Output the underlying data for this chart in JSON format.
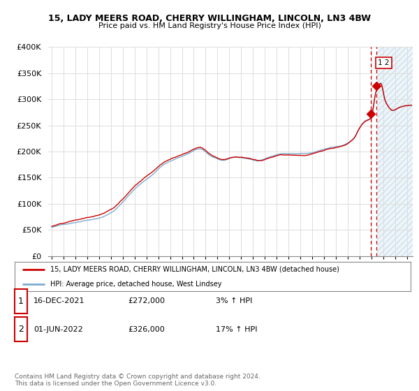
{
  "title": "15, LADY MEERS ROAD, CHERRY WILLINGHAM, LINCOLN, LN3 4BW",
  "subtitle": "Price paid vs. HM Land Registry's House Price Index (HPI)",
  "ylabel_ticks": [
    "£0",
    "£50K",
    "£100K",
    "£150K",
    "£200K",
    "£250K",
    "£300K",
    "£350K",
    "£400K"
  ],
  "ytick_values": [
    0,
    50000,
    100000,
    150000,
    200000,
    250000,
    300000,
    350000,
    400000
  ],
  "ylim": [
    0,
    400000
  ],
  "xlim_start": 1994.7,
  "xlim_end": 2025.5,
  "year_ticks": [
    1995,
    1996,
    1997,
    1998,
    1999,
    2000,
    2001,
    2002,
    2003,
    2004,
    2005,
    2006,
    2007,
    2008,
    2009,
    2010,
    2011,
    2012,
    2013,
    2014,
    2015,
    2016,
    2017,
    2018,
    2019,
    2020,
    2021,
    2022,
    2023,
    2024,
    2025
  ],
  "hpi_color": "#7aadcf",
  "price_color": "#cc0000",
  "hatch_color": "#c8dff0",
  "marker1_date": 2021.96,
  "marker1_price": 272000,
  "marker2_date": 2022.42,
  "marker2_price": 326000,
  "hatch_start": 2022.5,
  "legend_label1": "15, LADY MEERS ROAD, CHERRY WILLINGHAM, LINCOLN, LN3 4BW (detached house)",
  "legend_label2": "HPI: Average price, detached house, West Lindsey",
  "table_row1": [
    "1",
    "16-DEC-2021",
    "£272,000",
    "3% ↑ HPI"
  ],
  "table_row2": [
    "2",
    "01-JUN-2022",
    "£326,000",
    "17% ↑ HPI"
  ],
  "footnote": "Contains HM Land Registry data © Crown copyright and database right 2024.\nThis data is licensed under the Open Government Licence v3.0.",
  "bg_color": "#ffffff",
  "grid_color": "#dddddd"
}
